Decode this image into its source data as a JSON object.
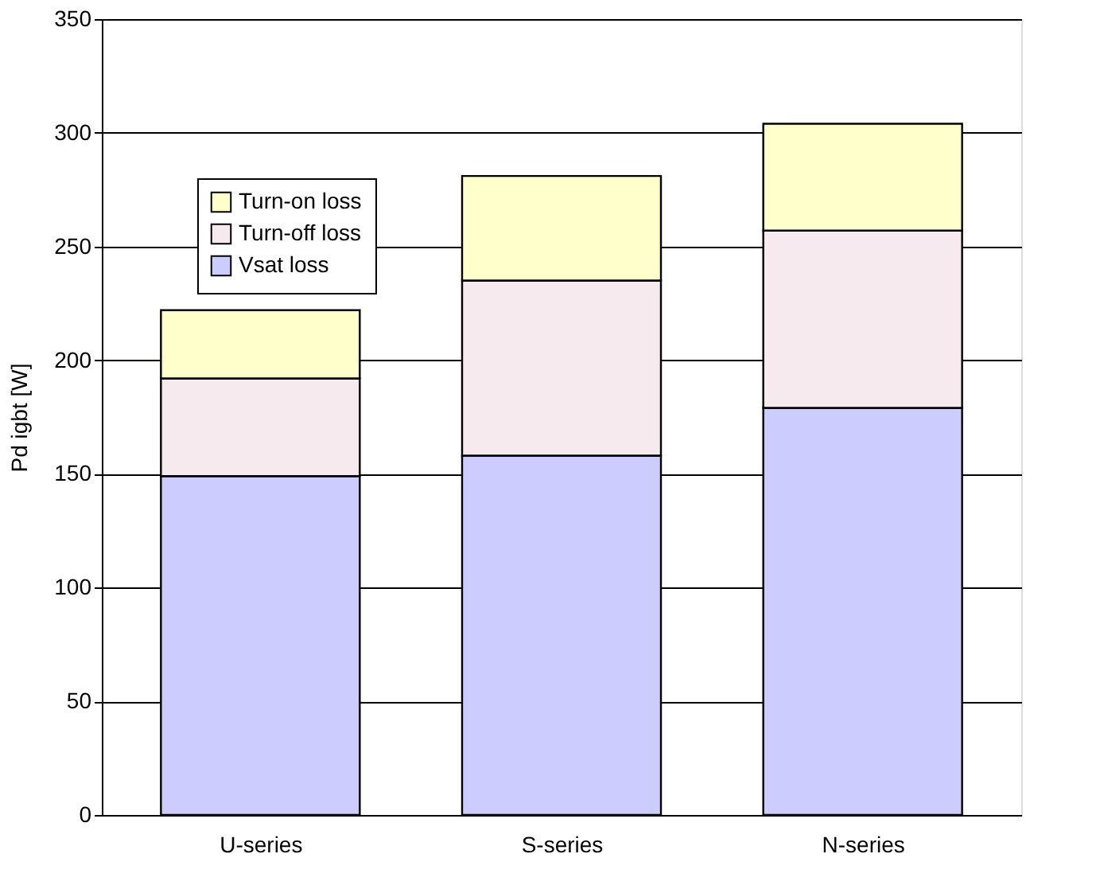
{
  "chart_data": {
    "type": "bar",
    "stacked": true,
    "ylabel": "Pd igbt [W]",
    "categories": [
      "U-series",
      "S-series",
      "N-series"
    ],
    "series": [
      {
        "name": "Vsat loss",
        "color": "#ccccff",
        "values": [
          149,
          158,
          179
        ]
      },
      {
        "name": "Turn-off loss",
        "color": "#f6eaee",
        "values": [
          43,
          77,
          78
        ]
      },
      {
        "name": "Turn-on loss",
        "color": "#ffffcc",
        "values": [
          30,
          46,
          47
        ]
      }
    ],
    "ylim": [
      0,
      350
    ],
    "yticks": [
      0,
      50,
      100,
      150,
      200,
      250,
      300,
      350
    ],
    "grid": "y",
    "legend": "top left"
  }
}
